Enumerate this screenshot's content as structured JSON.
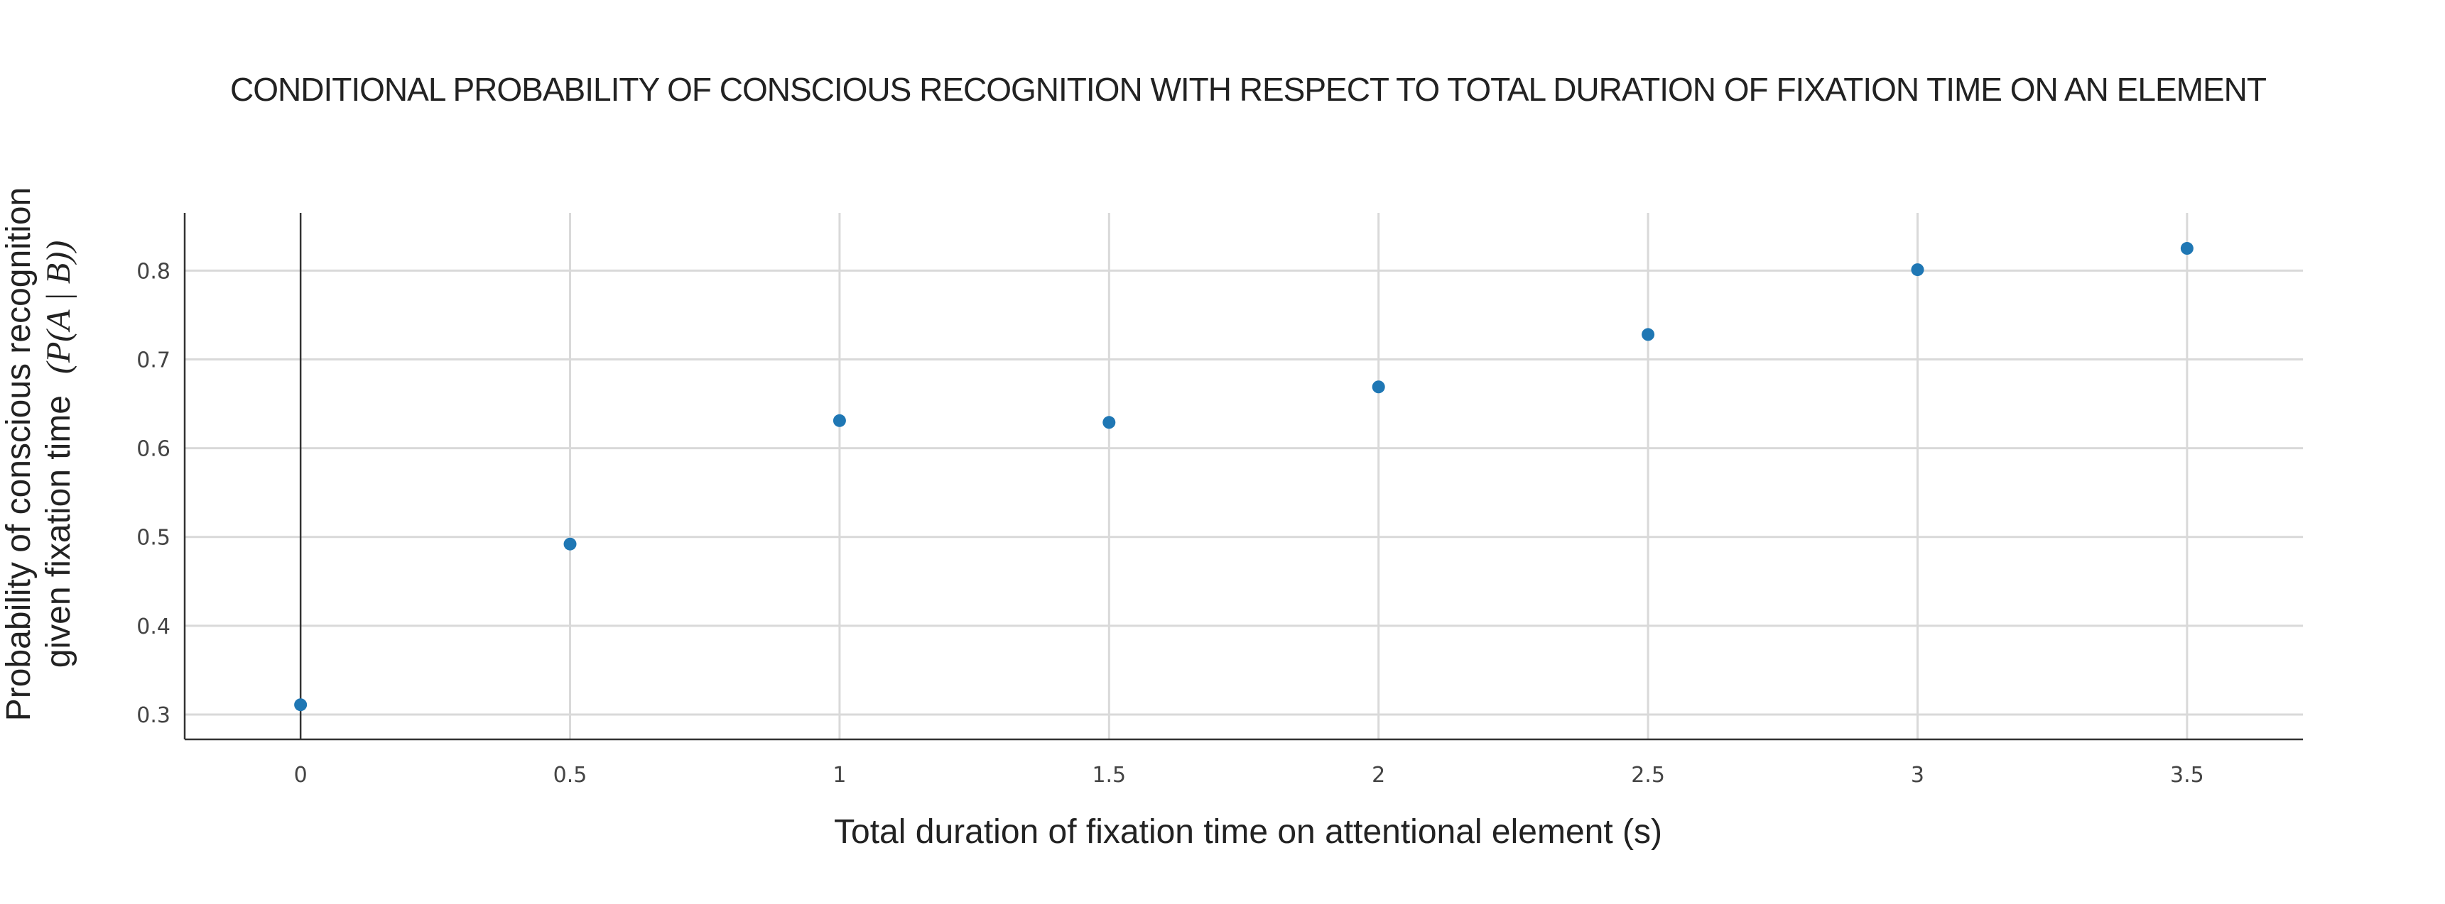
{
  "chart_data": {
    "type": "scatter",
    "title": "CONDITIONAL PROBABILITY OF CONSCIOUS RECOGNITION WITH RESPECT TO TOTAL DURATION OF FIXATION TIME ON AN ELEMENT",
    "xlabel": "Total duration of fixation time on attentional element (s)",
    "ylabel_line1": "Probability of conscious recognition",
    "ylabel_line2": "given fixation time",
    "ylabel_math": "(P(A | B))",
    "x": [
      0,
      0.5,
      1,
      1.5,
      2,
      2.5,
      3,
      3.5
    ],
    "y": [
      0.311,
      0.492,
      0.631,
      0.629,
      0.669,
      0.728,
      0.801,
      0.825
    ],
    "xlim": [
      -0.215,
      3.715
    ],
    "ylim": [
      0.272,
      0.865
    ],
    "xticks": [
      0,
      0.5,
      1,
      1.5,
      2,
      2.5,
      3,
      3.5
    ],
    "xtick_labels": [
      "0",
      "0.5",
      "1",
      "1.5",
      "2",
      "2.5",
      "3",
      "3.5"
    ],
    "yticks": [
      0.3,
      0.4,
      0.5,
      0.6,
      0.7,
      0.8
    ],
    "ytick_labels": [
      "0.3",
      "0.4",
      "0.5",
      "0.6",
      "0.7",
      "0.8"
    ],
    "grid": true,
    "zero_line": true,
    "colors": {
      "point": "#1f77b4",
      "grid": "#d9d9d9",
      "axis": "#333333"
    }
  }
}
